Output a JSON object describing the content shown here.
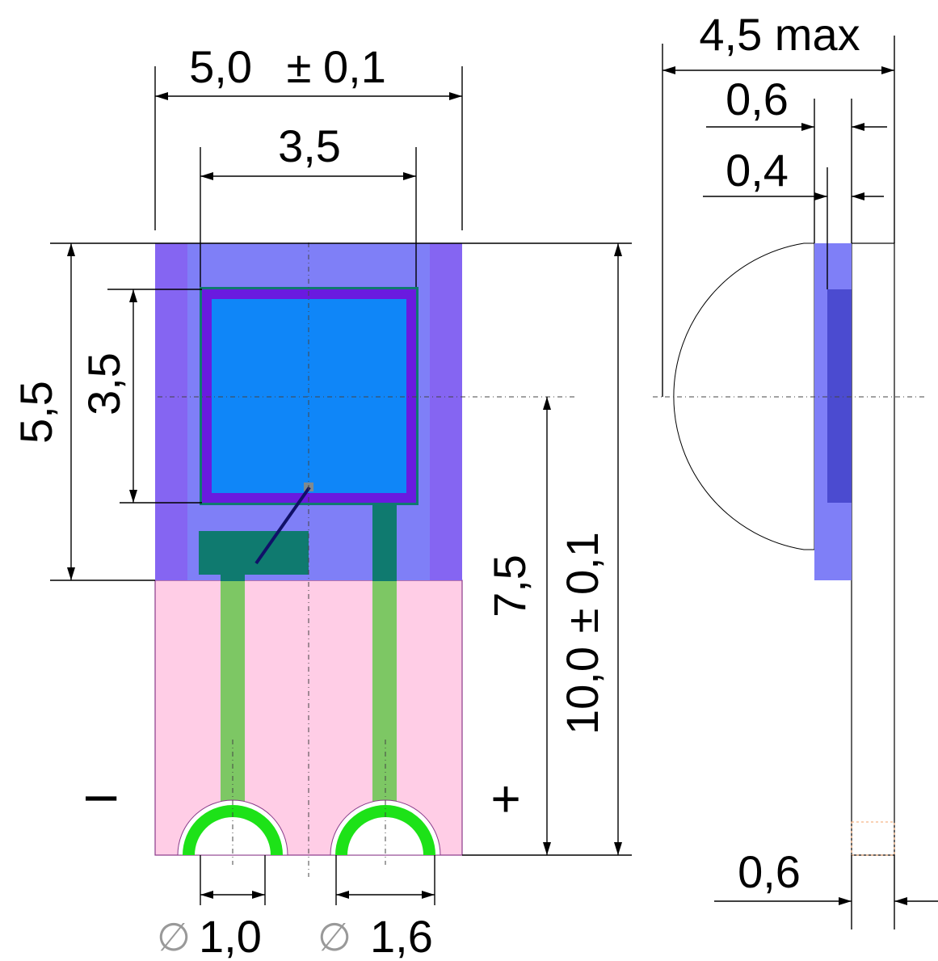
{
  "front_view": {
    "width_label": "5,0",
    "tolerance_symbol": "±",
    "width_tol_label": "0,1",
    "chip_width_label": "3,5",
    "height_label": "5,5",
    "chip_height_label": "3,5",
    "center_height_label": "7,5",
    "total_height_label": "10,0",
    "total_height_tol_label": "0,1",
    "minus_label": "I",
    "plus_label": "+",
    "hole_small_symbol": "∅",
    "hole_small_label": "1,0",
    "hole_large_symbol": "∅",
    "hole_large_label": "1,6"
  },
  "side_view": {
    "max_width_label": "4,5 max",
    "layer_outer_label": "0,6",
    "layer_inner_label": "0,4",
    "substrate_label": "0,6"
  },
  "colors": {
    "upper_body": "#7f7ff7",
    "side_strip": "#8565f2",
    "chip_frame": "#6a1adf",
    "chip_face": "#0f86f8",
    "teal_pad": "#0f7a6f",
    "lower_body": "#ffcde6",
    "trace": "#7dc764",
    "ring": "#1de218",
    "bond_wire": "#101068",
    "inner_layer": "#4b4bd0"
  }
}
